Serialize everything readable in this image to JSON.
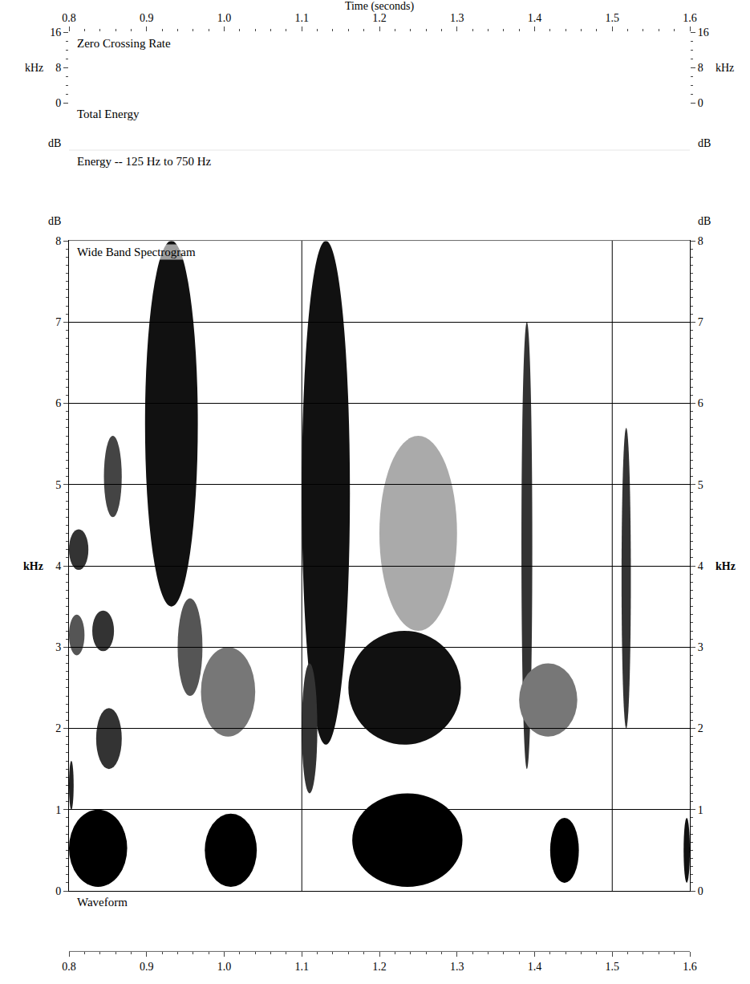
{
  "chart_data": {
    "type": "spectrogram",
    "title": "Time (seconds)",
    "xlim": [
      0.8,
      1.6
    ],
    "xticks": [
      0.8,
      0.9,
      {
        "value": 1,
        "label": "1.0"
      },
      1.1,
      1.2,
      1.3,
      1.4,
      1.5,
      1.6
    ],
    "panels": [
      {
        "label": "Zero Crossing Rate",
        "unit": "kHz",
        "ylim": [
          0,
          16
        ],
        "yticks": [
          0,
          8,
          16
        ]
      },
      {
        "label": "Total Energy",
        "unit": "dB"
      },
      {
        "label": "Energy -- 125 Hz to 750 Hz",
        "unit": "dB"
      },
      {
        "label": "Wide Band Spectrogram",
        "unit": "kHz",
        "ylim": [
          0,
          8
        ],
        "yticks": [
          0,
          1,
          2,
          3,
          4,
          5,
          6,
          7,
          8
        ],
        "grid": true,
        "time_marks": [
          1.1,
          1.5
        ],
        "regions": [
          {
            "t": [
              0.8,
              0.875
            ],
            "f": [
              0.05,
              1.0
            ],
            "color": "#000000"
          },
          {
            "t": [
              0.8,
              0.806
            ],
            "f": [
              1.0,
              1.6
            ],
            "color": "#222222"
          },
          {
            "t": [
              0.8,
              0.825
            ],
            "f": [
              3.95,
              4.45
            ],
            "color": "#333333"
          },
          {
            "t": [
              0.8,
              0.82
            ],
            "f": [
              2.9,
              3.4
            ],
            "color": "#555555"
          },
          {
            "t": [
              0.83,
              0.858
            ],
            "f": [
              2.95,
              3.45
            ],
            "color": "#333333"
          },
          {
            "t": [
              0.835,
              0.868
            ],
            "f": [
              1.5,
              2.25
            ],
            "color": "#333333"
          },
          {
            "t": [
              0.845,
              0.868
            ],
            "f": [
              4.6,
              5.6
            ],
            "color": "#444444"
          },
          {
            "t": [
              0.898,
              0.966
            ],
            "f": [
              3.5,
              8.0
            ],
            "color": "#111111"
          },
          {
            "t": [
              0.94,
              0.972
            ],
            "f": [
              2.4,
              3.6
            ],
            "color": "#555555"
          },
          {
            "t": [
              0.975,
              1.042
            ],
            "f": [
              0.05,
              0.95
            ],
            "color": "#000000"
          },
          {
            "t": [
              0.97,
              1.04
            ],
            "f": [
              1.9,
              3.0
            ],
            "color": "#777777"
          },
          {
            "t": [
              1.1,
              1.162
            ],
            "f": [
              1.8,
              8.0
            ],
            "color": "#111111"
          },
          {
            "t": [
              1.1,
              1.12
            ],
            "f": [
              1.2,
              2.8
            ],
            "color": "#333333"
          },
          {
            "t": [
              1.165,
              1.307
            ],
            "f": [
              0.05,
              1.2
            ],
            "color": "#000000"
          },
          {
            "t": [
              1.16,
              1.305
            ],
            "f": [
              1.8,
              3.2
            ],
            "color": "#111111"
          },
          {
            "t": [
              1.2,
              1.3
            ],
            "f": [
              3.2,
              5.6
            ],
            "color": "#aaaaaa"
          },
          {
            "t": [
              1.383,
              1.397
            ],
            "f": [
              1.5,
              7.0
            ],
            "color": "#333333"
          },
          {
            "t": [
              1.38,
              1.455
            ],
            "f": [
              1.9,
              2.8
            ],
            "color": "#777777"
          },
          {
            "t": [
              1.42,
              1.457
            ],
            "f": [
              0.1,
              0.9
            ],
            "color": "#000000"
          },
          {
            "t": [
              1.512,
              1.524
            ],
            "f": [
              2.0,
              5.7
            ],
            "color": "#333333"
          },
          {
            "t": [
              1.592,
              1.6
            ],
            "f": [
              0.1,
              0.9
            ],
            "color": "#111111"
          }
        ]
      },
      {
        "label": "Waveform"
      }
    ]
  }
}
